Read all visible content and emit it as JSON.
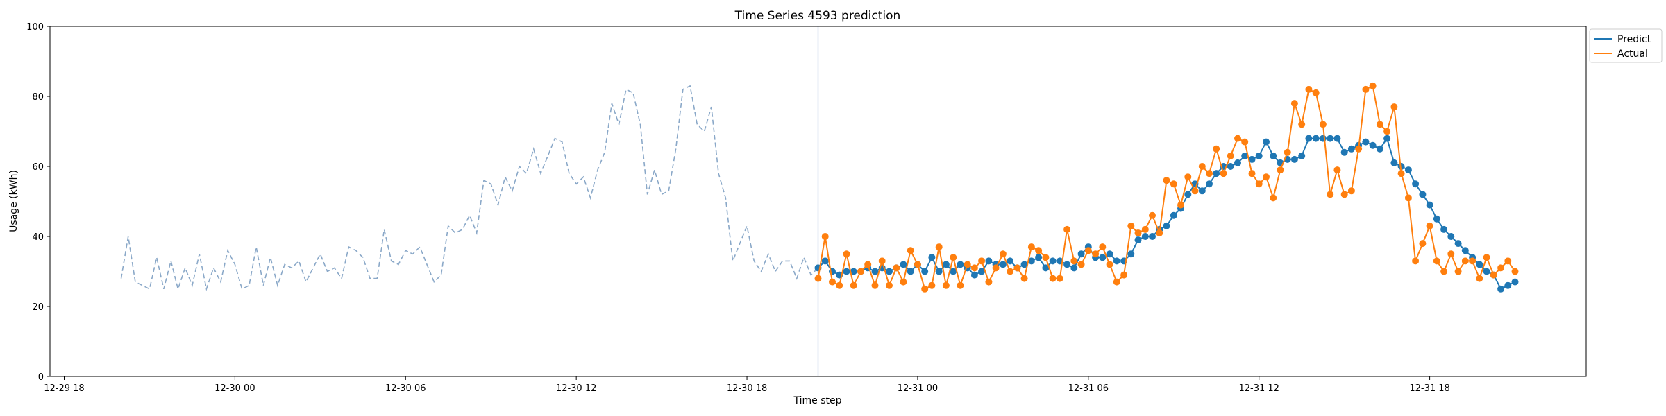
{
  "chart_data": {
    "type": "line",
    "title": "Time Series 4593 prediction",
    "xlabel": "Time step",
    "ylabel": "Usage (kWh)",
    "ylim": [
      0,
      100
    ],
    "xlim": [
      "12-29 17:30",
      "12-31 23:30"
    ],
    "yticks": [
      0,
      20,
      40,
      60,
      80,
      100
    ],
    "xticks": [
      "12-29 18",
      "12-30 00",
      "12-30 06",
      "12-30 12",
      "12-30 18",
      "12-31 00",
      "12-31 06",
      "12-31 12",
      "12-31 18"
    ],
    "grid": false,
    "legend_position": "top-right, outside plot",
    "forecast_start": "12-30 20:30",
    "colors": {
      "history": "#8aa8c8",
      "predict": "#1f77b4",
      "actual": "#ff7f0e",
      "divider": "#7c9cc8"
    },
    "history": {
      "start": "12-29 20:00",
      "step_minutes": 15,
      "style": "dashed",
      "values": [
        28,
        40,
        27,
        26,
        25,
        34,
        25,
        33,
        25,
        31,
        26,
        35,
        25,
        31,
        27,
        36,
        32,
        25,
        26,
        37,
        26,
        34,
        26,
        32,
        31,
        33,
        27,
        31,
        35,
        30,
        31,
        28,
        37,
        36,
        34,
        28,
        28,
        42,
        33,
        32,
        36,
        35,
        37,
        32,
        27,
        29,
        43,
        41,
        42,
        46,
        41,
        56,
        55,
        49,
        57,
        53,
        60,
        58,
        65,
        58,
        63,
        68,
        67,
        58,
        55,
        57,
        51,
        59,
        64,
        78,
        72,
        82,
        81,
        72,
        52,
        59,
        52,
        53,
        65,
        82,
        83,
        72,
        70,
        77,
        58,
        51,
        33,
        38,
        43,
        33,
        30,
        35,
        30,
        33,
        33,
        28,
        34,
        29,
        31
      ]
    },
    "series": [
      {
        "name": "Predict",
        "start": "12-30 20:30",
        "step_minutes": 15,
        "values": [
          31,
          33,
          30,
          29,
          30,
          30,
          30,
          31,
          30,
          31,
          30,
          31,
          32,
          30,
          32,
          30,
          34,
          30,
          32,
          30,
          32,
          31,
          29,
          30,
          33,
          32,
          32,
          33,
          31,
          32,
          33,
          34,
          31,
          33,
          33,
          32,
          31,
          35,
          37,
          34,
          34,
          35,
          33,
          33,
          35,
          39,
          40,
          40,
          42,
          43,
          46,
          48,
          52,
          55,
          53,
          55,
          58,
          60,
          60,
          61,
          63,
          62,
          63,
          67,
          63,
          61,
          62,
          62,
          63,
          68,
          68,
          68,
          68,
          68,
          64,
          65,
          66,
          67,
          66,
          65,
          68,
          61,
          60,
          59,
          55,
          52,
          49,
          45,
          42,
          40,
          38,
          36,
          34,
          32,
          30,
          29,
          25,
          26,
          27
        ]
      },
      {
        "name": "Actual",
        "start": "12-30 20:30",
        "step_minutes": 15,
        "values": [
          28,
          40,
          27,
          26,
          35,
          26,
          30,
          32,
          26,
          33,
          26,
          31,
          27,
          36,
          32,
          25,
          26,
          37,
          26,
          34,
          26,
          32,
          31,
          33,
          27,
          31,
          35,
          30,
          31,
          28,
          37,
          36,
          34,
          28,
          28,
          42,
          33,
          32,
          36,
          35,
          37,
          32,
          27,
          29,
          43,
          41,
          42,
          46,
          41,
          56,
          55,
          49,
          57,
          53,
          60,
          58,
          65,
          58,
          63,
          68,
          67,
          58,
          55,
          57,
          51,
          59,
          64,
          78,
          72,
          82,
          81,
          72,
          52,
          59,
          52,
          53,
          65,
          82,
          83,
          72,
          70,
          77,
          58,
          51,
          33,
          38,
          43,
          33,
          30,
          35,
          30,
          33,
          33,
          28,
          34,
          29,
          31,
          33,
          30
        ]
      }
    ]
  }
}
